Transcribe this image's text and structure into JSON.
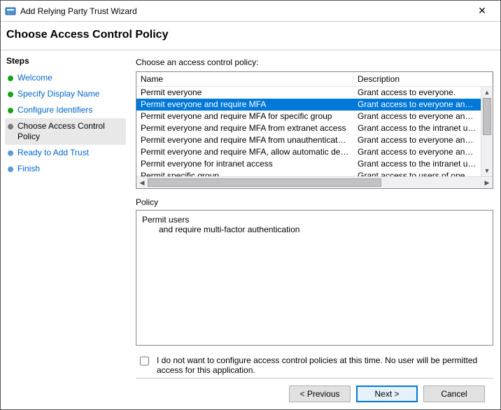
{
  "window": {
    "title": "Add Relying Party Trust Wizard",
    "header": "Choose Access Control Policy"
  },
  "colors": {
    "selection_bg": "#0078d7",
    "selection_fg": "#ffffff",
    "link": "#0066cc",
    "bullet_done": "#1aa01a",
    "bullet_current": "#7a7a7a",
    "bullet_pending": "#5b9bd5",
    "border": "#828790"
  },
  "sidebar": {
    "heading": "Steps",
    "items": [
      {
        "label": "Welcome",
        "state": "done"
      },
      {
        "label": "Specify Display Name",
        "state": "done"
      },
      {
        "label": "Configure Identifiers",
        "state": "done"
      },
      {
        "label": "Choose Access Control Policy",
        "state": "current"
      },
      {
        "label": "Ready to Add Trust",
        "state": "pending"
      },
      {
        "label": "Finish",
        "state": "pending"
      }
    ]
  },
  "content": {
    "prompt": "Choose an access control policy:",
    "columns": {
      "name": "Name",
      "description": "Description"
    },
    "rows": [
      {
        "name": "Permit everyone",
        "desc": "Grant access to everyone.",
        "selected": false
      },
      {
        "name": "Permit everyone and require MFA",
        "desc": "Grant access to everyone and requir",
        "selected": true
      },
      {
        "name": "Permit everyone and require MFA for specific group",
        "desc": "Grant access to everyone and requir",
        "selected": false
      },
      {
        "name": "Permit everyone and require MFA from extranet access",
        "desc": "Grant access to the intranet users an",
        "selected": false
      },
      {
        "name": "Permit everyone and require MFA from unauthenticated devices",
        "desc": "Grant access to everyone and requir",
        "selected": false
      },
      {
        "name": "Permit everyone and require MFA, allow automatic device registr...",
        "desc": "Grant access to everyone and requir",
        "selected": false
      },
      {
        "name": "Permit everyone for intranet access",
        "desc": "Grant access to the intranet users.",
        "selected": false
      },
      {
        "name": "Permit specific group",
        "desc": "Grant access to users of one or more",
        "selected": false
      }
    ],
    "policy_label": "Policy",
    "policy_lines": [
      "Permit users",
      "and require multi-factor authentication"
    ],
    "optout_label": "I do not want to configure access control policies at this time. No user will be permitted access for this application.",
    "optout_checked": false
  },
  "footer": {
    "previous": "< Previous",
    "next": "Next >",
    "cancel": "Cancel"
  }
}
